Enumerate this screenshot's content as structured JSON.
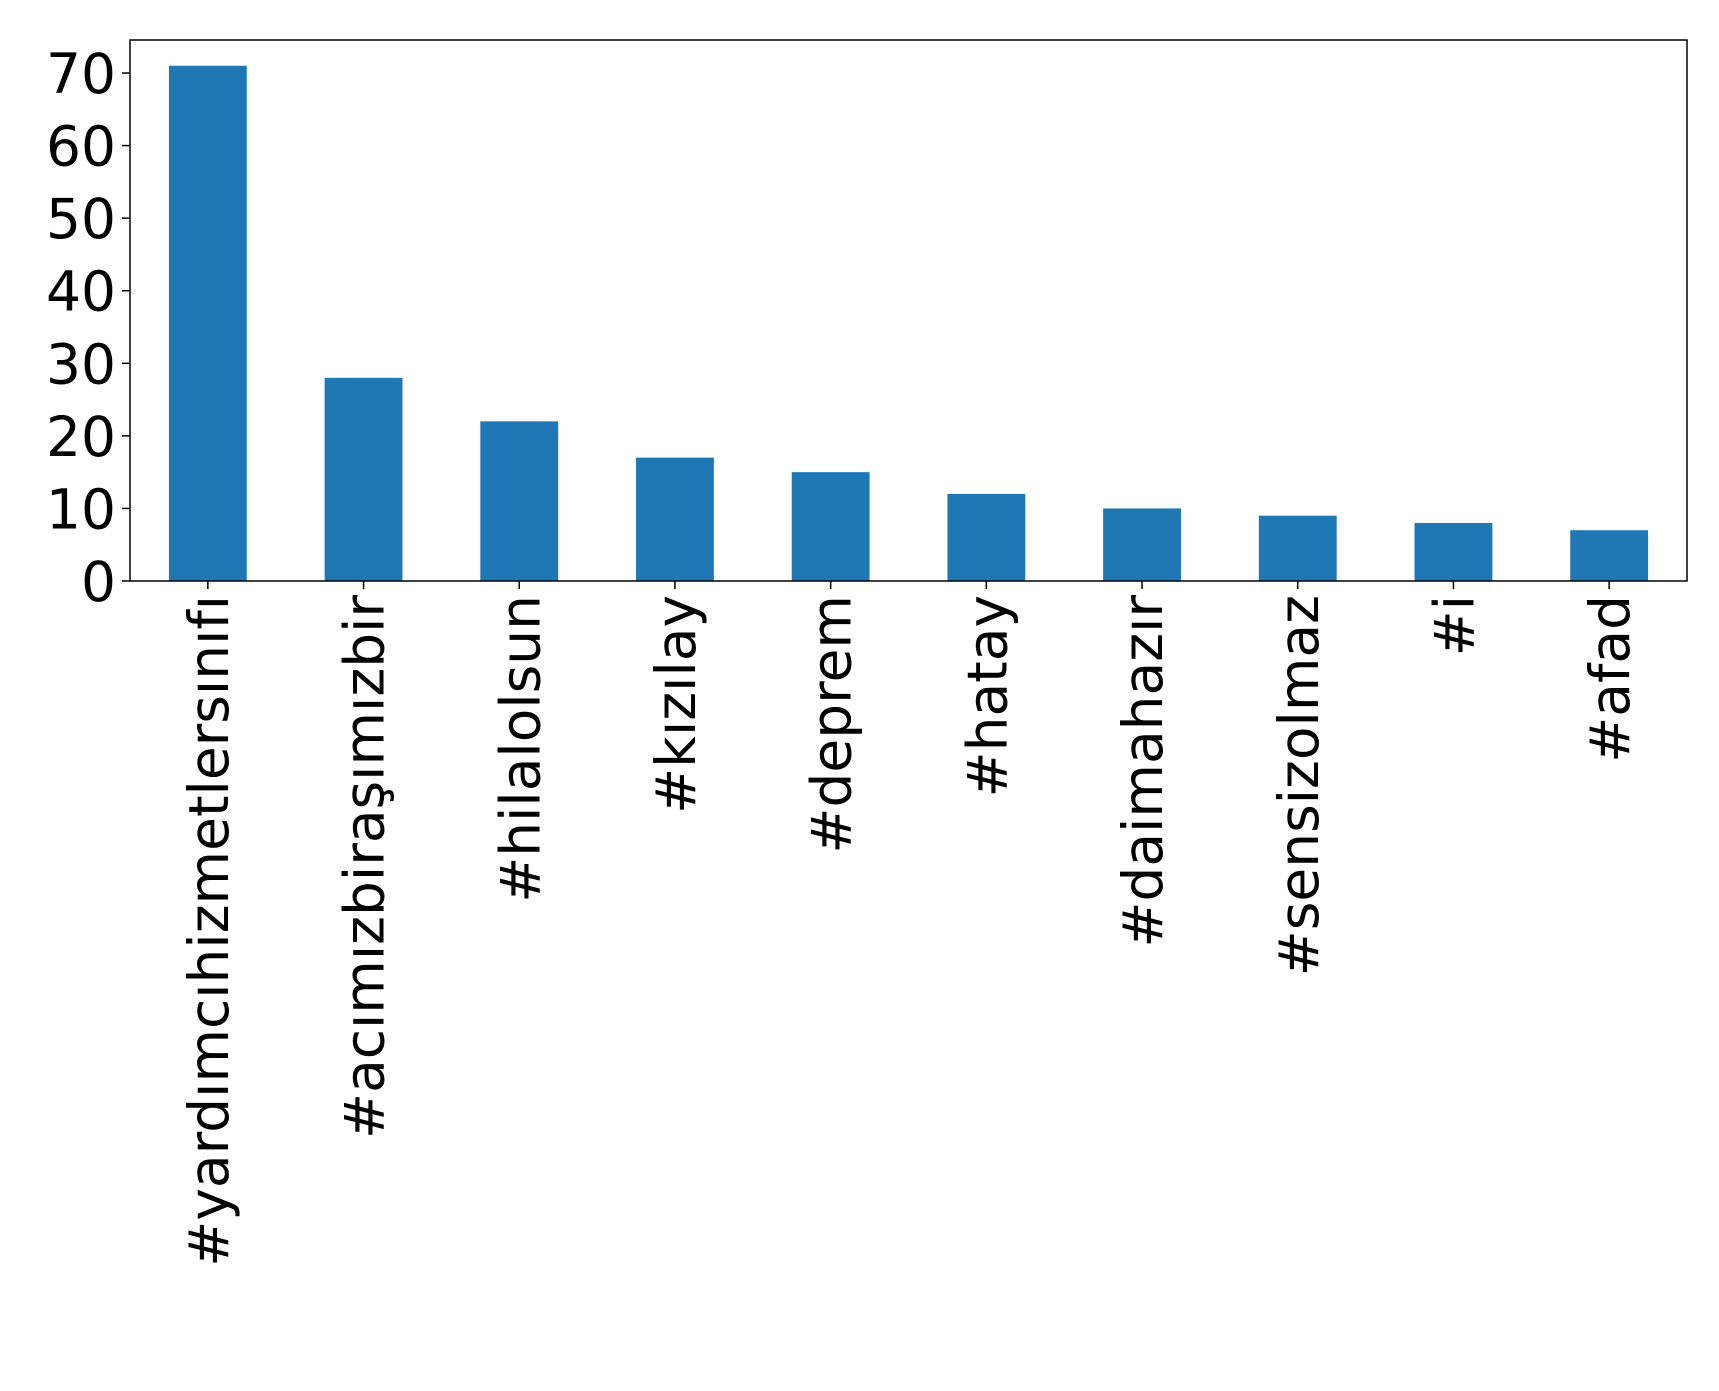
{
  "chart_data": {
    "type": "bar",
    "categories": [
      "#yardımcıhizmetlersınıfı",
      "#acımızbiraşımızbir",
      "#hilalolsun",
      "#kızılay",
      "#deprem",
      "#hatay",
      "#daimahazır",
      "#sensizolmaz",
      "#i",
      "#afad"
    ],
    "values": [
      71,
      28,
      22,
      17,
      15,
      12,
      10,
      9,
      8,
      7
    ],
    "color": "#1f77b4",
    "ylim": [
      0,
      74.55
    ],
    "yticks": [
      0,
      10,
      20,
      30,
      40,
      50,
      60,
      70
    ],
    "grid": false
  }
}
